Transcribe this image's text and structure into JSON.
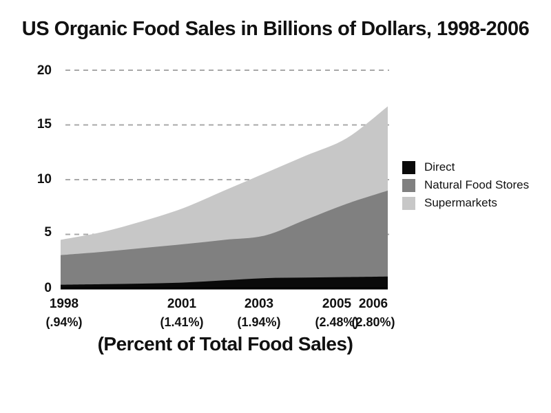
{
  "slide": {
    "title": "US Organic Food Sales in Billions of Dollars, 1998-2006",
    "caption": "(Percent of Total Food Sales)"
  },
  "y_axis": {
    "ticks": [
      "20",
      "15",
      "10",
      "5",
      "0"
    ]
  },
  "x_axis": {
    "labels": [
      {
        "year": "1998",
        "pct": "(.94%)"
      },
      {
        "year": "2001",
        "pct": "(1.41%)"
      },
      {
        "year": "2003",
        "pct": "(1.94%)"
      },
      {
        "year": "2005",
        "pct": "(2.48%)"
      },
      {
        "year": "2006",
        "pct": "(2.80%)"
      }
    ]
  },
  "legend": {
    "items": [
      {
        "label": "Direct",
        "color": "#0a0a0a"
      },
      {
        "label": "Natural Food Stores",
        "color": "#808080"
      },
      {
        "label": "Supermarkets",
        "color": "#c7c7c7"
      }
    ]
  },
  "chart_data": {
    "type": "area",
    "stacked": true,
    "title": "US Organic Food Sales in Billions of Dollars, 1998-2006",
    "units": "billions of USD",
    "x": [
      1998,
      1999,
      2000,
      2001,
      2002,
      2003,
      2004,
      2005,
      2006
    ],
    "series": [
      {
        "name": "Direct",
        "color": "#0a0a0a",
        "values": [
          0.4,
          0.45,
          0.5,
          0.6,
          0.8,
          1.0,
          1.05,
          1.1,
          1.15
        ]
      },
      {
        "name": "Natural Food Stores",
        "color": "#808080",
        "values": [
          2.7,
          2.95,
          3.25,
          3.5,
          3.7,
          3.9,
          5.3,
          6.7,
          7.85
        ]
      },
      {
        "name": "Supermarkets",
        "color": "#c7c7c7",
        "values": [
          1.4,
          1.8,
          2.45,
          3.3,
          4.5,
          5.7,
          5.85,
          6.0,
          7.7
        ]
      }
    ],
    "totals_by_year": [
      4.5,
      5.2,
      6.2,
      7.4,
      9.0,
      10.6,
      12.2,
      13.8,
      16.7
    ],
    "x_labeled_ticks": [
      {
        "year": 1998,
        "percent_of_total_food_sales": "0.94%"
      },
      {
        "year": 2001,
        "percent_of_total_food_sales": "1.41%"
      },
      {
        "year": 2003,
        "percent_of_total_food_sales": "1.94%"
      },
      {
        "year": 2005,
        "percent_of_total_food_sales": "2.48%"
      },
      {
        "year": 2006,
        "percent_of_total_food_sales": "2.80%"
      }
    ],
    "ylim": [
      0,
      20
    ],
    "y_gridlines": [
      5,
      10,
      15,
      20
    ],
    "grid_style": "dashed horizontal gridlines drawn behind areas",
    "legend_position": "right"
  },
  "colors": {
    "background": "#ffffff",
    "text": "#111111",
    "gridline": "#a8a8a8",
    "axis_line": "#000000"
  }
}
